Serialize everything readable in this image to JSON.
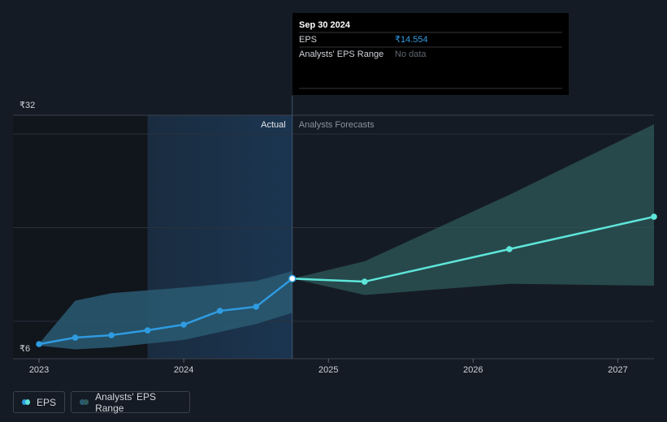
{
  "chart_data": {
    "type": "line",
    "xlim": [
      2022.82,
      2027.25
    ],
    "xticks": [
      2023,
      2024,
      2025,
      2026,
      2027
    ],
    "ylim": [
      6,
      32
    ],
    "yticks": [
      {
        "value": 6,
        "label": "₹6"
      },
      {
        "value": 32,
        "label": "₹32"
      }
    ],
    "ygrid": [
      10,
      20,
      30
    ],
    "divider": 2024.75,
    "actual_label": "Actual",
    "forecast_label": "Analysts Forecasts",
    "series": [
      {
        "name": "EPS",
        "color": "#2f9be0",
        "forecast_color": "#5ee6d9",
        "x": [
          2023,
          2023.25,
          2023.5,
          2023.75,
          2024,
          2024.25,
          2024.5,
          2024.75,
          2025.25,
          2026.25,
          2027.25
        ],
        "values": [
          7.56,
          8.25,
          8.51,
          9.03,
          9.64,
          11.11,
          11.55,
          14.554,
          14.23,
          17.7,
          21.16
        ]
      }
    ],
    "range": {
      "name": "Analysts' EPS Range",
      "color": "#2a5a72",
      "forecast_color": "#2e5a5a",
      "past": {
        "x": [
          2023,
          2023.25,
          2023.5,
          2024,
          2024.5,
          2024.75
        ],
        "high": [
          7.6,
          12.2,
          13.0,
          13.6,
          14.3,
          15.36
        ],
        "low": [
          7.4,
          7.0,
          7.2,
          8.0,
          9.7,
          10.9
        ]
      },
      "forecast": {
        "x": [
          2024.75,
          2025.25,
          2026.25,
          2027.25
        ],
        "high": [
          14.554,
          16.4,
          23.5,
          31.04
        ],
        "low": [
          14.554,
          12.8,
          14.0,
          13.8
        ]
      }
    },
    "tooltip": {
      "title": "Sep 30 2024",
      "rows": [
        {
          "label": "EPS",
          "value": "₹14.554"
        },
        {
          "label": "Analysts' EPS Range",
          "value": "No data"
        }
      ]
    }
  }
}
